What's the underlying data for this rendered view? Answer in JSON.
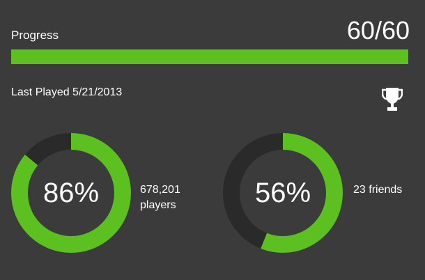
{
  "colors": {
    "accent": "#5cc021",
    "track": "#2a2a2a",
    "background": "#3b3b3b"
  },
  "progress": {
    "label": "Progress",
    "count": "60/60",
    "fraction": 1.0
  },
  "last_played": "Last Played 5/21/2013",
  "trophy": {
    "icon": "trophy-icon"
  },
  "stats": [
    {
      "percent_text": "86%",
      "percent": 86,
      "caption_line1": "678,201",
      "caption_line2": "players"
    },
    {
      "percent_text": "56%",
      "percent": 56,
      "caption_line1": "23 friends"
    }
  ]
}
